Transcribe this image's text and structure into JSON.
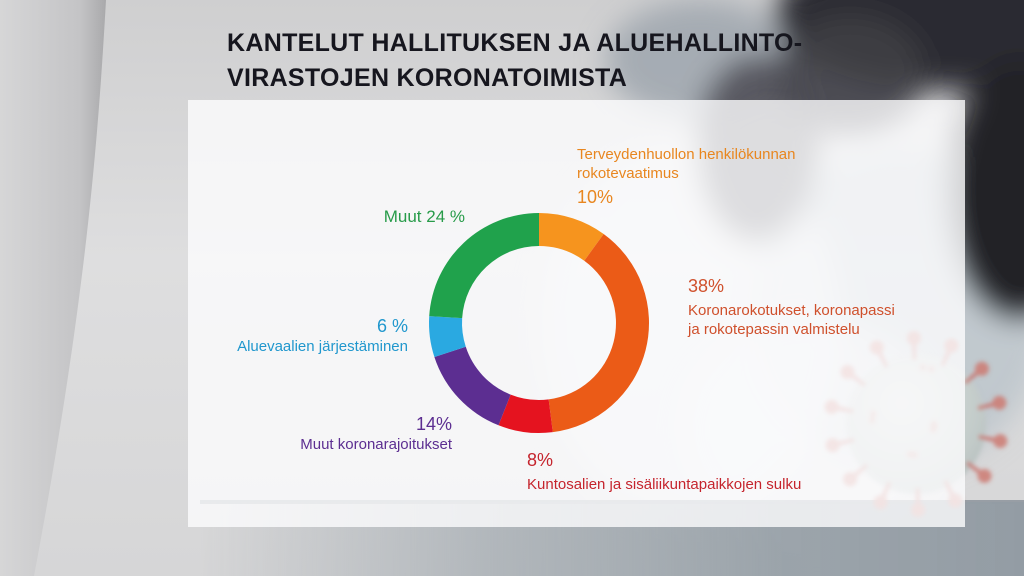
{
  "title": {
    "line1": "KANTELUT HALLITUKSEN JA ALUEHALLINTO-",
    "line2": "VIRASTOJEN KORONATOIMISTA"
  },
  "chart_data": {
    "type": "pie",
    "variant": "donut",
    "title": "Kantelut hallituksen ja aluehallintovirastojen koronatoimista",
    "unit": "%",
    "start_angle_deg": 0,
    "direction": "clockwise",
    "legend_position": "around-chart",
    "segments": [
      {
        "label": "Terveydenhuollon henkilökunnan rokotevaatimus",
        "value": 10,
        "color": "#F6941E"
      },
      {
        "label": "Koronarokotukset, koronapassi ja rokotepassin valmistelu",
        "value": 38,
        "color": "#EB5B17"
      },
      {
        "label": "Kuntosalien ja sisäliikuntapaikkojen sulku",
        "value": 8,
        "color": "#E5131F"
      },
      {
        "label": "Muut koronarajoitukset",
        "value": 14,
        "color": "#5C2E91"
      },
      {
        "label": "Aluevaalien järjestäminen",
        "value": 6,
        "color": "#2AA9E1"
      },
      {
        "label": "Muut",
        "value": 24,
        "color": "#20A24C"
      }
    ]
  },
  "callouts": {
    "health_staff": {
      "line1": "Terveydenhuollon henkilökunnan",
      "line2": "rokotevaatimus",
      "pct": "10%",
      "color": "#E8861F"
    },
    "vaccinations": {
      "pct": "38%",
      "line1": "Koronarokotukset, koronapassi",
      "line2": "ja rokotepassin valmistelu",
      "color": "#CF502C"
    },
    "gyms": {
      "pct": "8%",
      "line1": "Kuntosalien ja sisäliikuntapaikkojen sulku",
      "color": "#C5242D"
    },
    "other_restrictions": {
      "pct": "14%",
      "line1": "Muut koronarajoitukset",
      "color": "#5C2E91"
    },
    "elections": {
      "pct": "6 %",
      "line1": "Aluevaalien järjestäminen",
      "color": "#2097CD"
    },
    "other": {
      "text": "Muut 24 %",
      "color": "#279B49"
    }
  }
}
